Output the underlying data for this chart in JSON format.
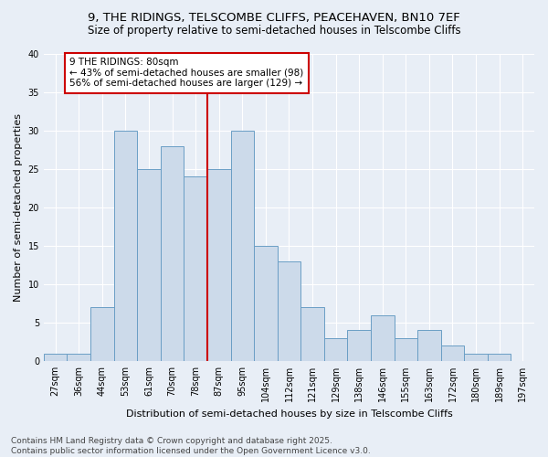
{
  "title_line1": "9, THE RIDINGS, TELSCOMBE CLIFFS, PEACEHAVEN, BN10 7EF",
  "title_line2": "Size of property relative to semi-detached houses in Telscombe Cliffs",
  "xlabel": "Distribution of semi-detached houses by size in Telscombe Cliffs",
  "ylabel": "Number of semi-detached properties",
  "categories": [
    "27sqm",
    "36sqm",
    "44sqm",
    "53sqm",
    "61sqm",
    "70sqm",
    "78sqm",
    "87sqm",
    "95sqm",
    "104sqm",
    "112sqm",
    "121sqm",
    "129sqm",
    "138sqm",
    "146sqm",
    "155sqm",
    "163sqm",
    "172sqm",
    "180sqm",
    "189sqm",
    "197sqm"
  ],
  "values": [
    1,
    1,
    7,
    30,
    25,
    28,
    24,
    25,
    30,
    15,
    13,
    7,
    3,
    4,
    6,
    3,
    4,
    2,
    1,
    1,
    0
  ],
  "highlight_index": 6,
  "bar_color": "#ccdaea",
  "bar_edge_color": "#6a9ec5",
  "highlight_line_color": "#cc0000",
  "annotation_text": "9 THE RIDINGS: 80sqm\n← 43% of semi-detached houses are smaller (98)\n56% of semi-detached houses are larger (129) →",
  "annotation_box_edge_color": "#cc0000",
  "ylim": [
    0,
    40
  ],
  "yticks": [
    0,
    5,
    10,
    15,
    20,
    25,
    30,
    35,
    40
  ],
  "footnote": "Contains HM Land Registry data © Crown copyright and database right 2025.\nContains public sector information licensed under the Open Government Licence v3.0.",
  "bg_color": "#e8eef6",
  "plot_bg_color": "#e8eef6",
  "grid_color": "#ffffff",
  "title_fontsize": 9.5,
  "subtitle_fontsize": 8.5,
  "axis_label_fontsize": 8,
  "tick_fontsize": 7,
  "annotation_fontsize": 7.5,
  "footnote_fontsize": 6.5
}
